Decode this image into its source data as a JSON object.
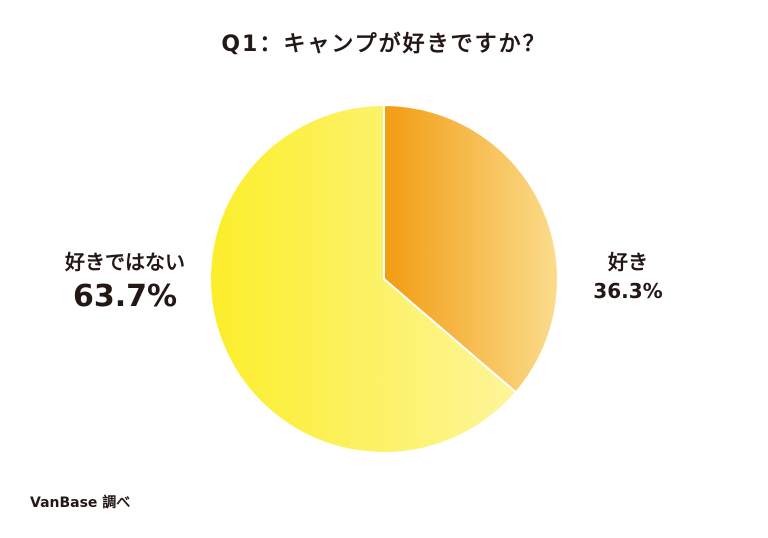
{
  "title": "Q1：キャンプが好きですか？",
  "source": "VanBase 調べ",
  "chart_data": {
    "type": "pie",
    "title": "Q1：キャンプが好きですか？",
    "slices": [
      {
        "label": "好き",
        "value": 36.3,
        "value_label": "36.3%",
        "colors": [
          "#f29c12",
          "#fbdc8c"
        ]
      },
      {
        "label": "好きではない",
        "value": 63.7,
        "value_label": "63.7%",
        "colors": [
          "#fcee2a",
          "#fdf59a"
        ]
      }
    ]
  }
}
